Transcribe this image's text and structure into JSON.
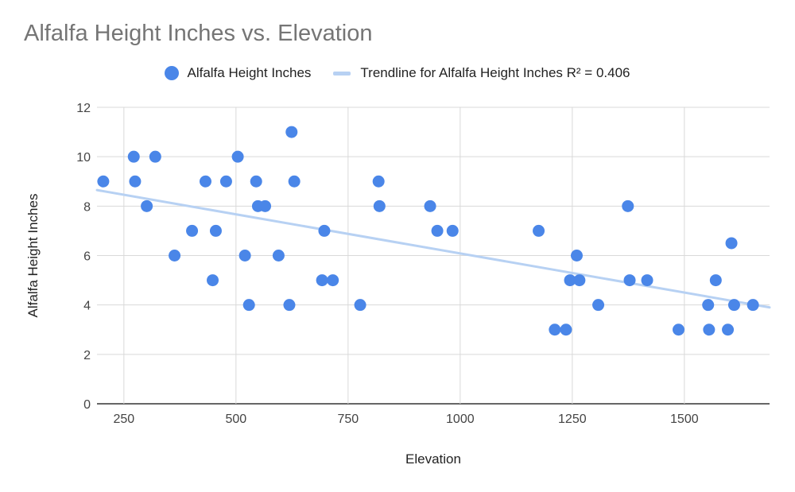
{
  "chart_data": {
    "type": "scatter",
    "title": "Alfalfa Height Inches vs. Elevation",
    "xlabel": "Elevation",
    "ylabel": "Alfalfa Height Inches",
    "xlim": [
      190,
      1690
    ],
    "ylim": [
      0,
      12
    ],
    "xticks": [
      250,
      500,
      750,
      1000,
      1250,
      1500
    ],
    "yticks": [
      0,
      2,
      4,
      6,
      8,
      10,
      12
    ],
    "grid": true,
    "legend_position": "top",
    "series": [
      {
        "name": "Alfalfa Height Inches",
        "color": "#4a86e8",
        "points": [
          [
            204,
            9
          ],
          [
            272,
            10
          ],
          [
            275,
            9
          ],
          [
            301,
            8
          ],
          [
            320,
            10
          ],
          [
            363,
            6
          ],
          [
            402,
            7
          ],
          [
            432,
            9
          ],
          [
            448,
            5
          ],
          [
            455,
            7
          ],
          [
            478,
            9
          ],
          [
            504,
            10
          ],
          [
            520,
            6
          ],
          [
            529,
            4
          ],
          [
            545,
            9
          ],
          [
            549,
            8
          ],
          [
            565,
            8
          ],
          [
            595,
            6
          ],
          [
            619,
            4
          ],
          [
            624,
            11
          ],
          [
            630,
            9
          ],
          [
            692,
            5
          ],
          [
            697,
            7
          ],
          [
            716,
            5
          ],
          [
            777,
            4
          ],
          [
            818,
            9
          ],
          [
            820,
            8
          ],
          [
            933,
            8
          ],
          [
            949,
            7
          ],
          [
            983,
            7
          ],
          [
            1175,
            7
          ],
          [
            1211,
            3
          ],
          [
            1236,
            3
          ],
          [
            1245,
            5
          ],
          [
            1260,
            6
          ],
          [
            1266,
            5
          ],
          [
            1308,
            4
          ],
          [
            1374,
            8
          ],
          [
            1378,
            5
          ],
          [
            1417,
            5
          ],
          [
            1487,
            3
          ],
          [
            1553,
            4
          ],
          [
            1555,
            3
          ],
          [
            1570,
            5
          ],
          [
            1597,
            3
          ],
          [
            1605,
            6.5
          ],
          [
            1611,
            4
          ],
          [
            1653,
            4
          ]
        ]
      }
    ],
    "trendline": {
      "name": "Trendline for Alfalfa Height Inches R² = 0.406",
      "color": "#b7d1f3",
      "r_squared": 0.406,
      "from": [
        190,
        8.65
      ],
      "to": [
        1690,
        3.9
      ]
    }
  }
}
